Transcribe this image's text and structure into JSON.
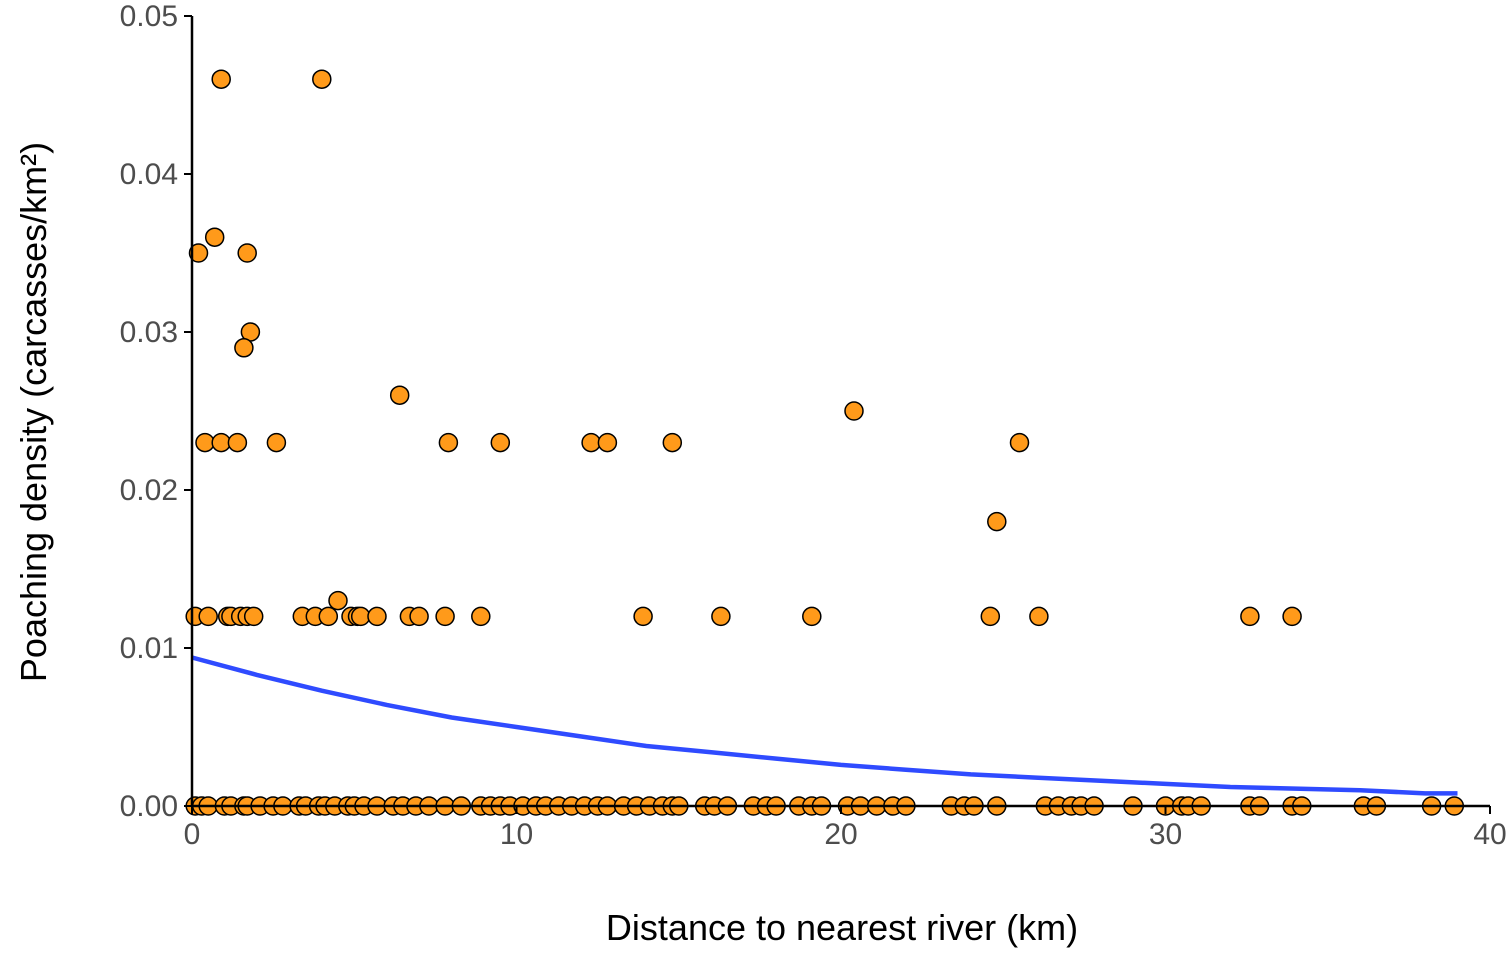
{
  "chart_data": {
    "type": "scatter",
    "xlabel": "Distance to nearest river (km)",
    "ylabel": "Poaching density (carcasses/km²)",
    "xlim": [
      0,
      40
    ],
    "ylim": [
      0,
      0.05
    ],
    "x_ticks": [
      0,
      10,
      20,
      30,
      40
    ],
    "x_tick_labels": [
      "0",
      "10",
      "20",
      "30",
      "40"
    ],
    "y_ticks": [
      0,
      0.01,
      0.02,
      0.03,
      0.04,
      0.05
    ],
    "y_tick_labels": [
      "0.00",
      "0.01",
      "0.02",
      "0.03",
      "0.04",
      "0.05"
    ],
    "grid": false,
    "legend": "none",
    "colors": {
      "point_fill": "#ff9a1a",
      "point_stroke": "#000000",
      "fit_line": "#2f4bff",
      "axis": "#000000"
    },
    "points": [
      {
        "x": 0.9,
        "y": 0.046
      },
      {
        "x": 4.0,
        "y": 0.046
      },
      {
        "x": 0.7,
        "y": 0.036
      },
      {
        "x": 0.2,
        "y": 0.035
      },
      {
        "x": 1.7,
        "y": 0.035
      },
      {
        "x": 1.8,
        "y": 0.03
      },
      {
        "x": 1.6,
        "y": 0.029
      },
      {
        "x": 6.4,
        "y": 0.026
      },
      {
        "x": 20.4,
        "y": 0.025
      },
      {
        "x": 0.4,
        "y": 0.023
      },
      {
        "x": 0.9,
        "y": 0.023
      },
      {
        "x": 1.4,
        "y": 0.023
      },
      {
        "x": 2.6,
        "y": 0.023
      },
      {
        "x": 7.9,
        "y": 0.023
      },
      {
        "x": 9.5,
        "y": 0.023
      },
      {
        "x": 12.3,
        "y": 0.023
      },
      {
        "x": 12.8,
        "y": 0.023
      },
      {
        "x": 14.8,
        "y": 0.023
      },
      {
        "x": 25.5,
        "y": 0.023
      },
      {
        "x": 24.8,
        "y": 0.018
      },
      {
        "x": 4.5,
        "y": 0.013
      },
      {
        "x": 0.1,
        "y": 0.012
      },
      {
        "x": 0.5,
        "y": 0.012
      },
      {
        "x": 1.1,
        "y": 0.012
      },
      {
        "x": 1.2,
        "y": 0.012
      },
      {
        "x": 1.5,
        "y": 0.012
      },
      {
        "x": 1.7,
        "y": 0.012
      },
      {
        "x": 1.9,
        "y": 0.012
      },
      {
        "x": 3.4,
        "y": 0.012
      },
      {
        "x": 3.8,
        "y": 0.012
      },
      {
        "x": 4.2,
        "y": 0.012
      },
      {
        "x": 4.9,
        "y": 0.012
      },
      {
        "x": 5.1,
        "y": 0.012
      },
      {
        "x": 5.2,
        "y": 0.012
      },
      {
        "x": 5.7,
        "y": 0.012
      },
      {
        "x": 6.7,
        "y": 0.012
      },
      {
        "x": 7.0,
        "y": 0.012
      },
      {
        "x": 7.8,
        "y": 0.012
      },
      {
        "x": 8.9,
        "y": 0.012
      },
      {
        "x": 13.9,
        "y": 0.012
      },
      {
        "x": 16.3,
        "y": 0.012
      },
      {
        "x": 19.1,
        "y": 0.012
      },
      {
        "x": 24.6,
        "y": 0.012
      },
      {
        "x": 26.1,
        "y": 0.012
      },
      {
        "x": 32.6,
        "y": 0.012
      },
      {
        "x": 33.9,
        "y": 0.012
      },
      {
        "x": 0.1,
        "y": 0
      },
      {
        "x": 0.3,
        "y": 0
      },
      {
        "x": 0.5,
        "y": 0
      },
      {
        "x": 1.0,
        "y": 0
      },
      {
        "x": 1.2,
        "y": 0
      },
      {
        "x": 1.6,
        "y": 0
      },
      {
        "x": 1.7,
        "y": 0
      },
      {
        "x": 2.1,
        "y": 0
      },
      {
        "x": 2.5,
        "y": 0
      },
      {
        "x": 2.8,
        "y": 0
      },
      {
        "x": 3.3,
        "y": 0
      },
      {
        "x": 3.5,
        "y": 0
      },
      {
        "x": 3.9,
        "y": 0
      },
      {
        "x": 4.1,
        "y": 0
      },
      {
        "x": 4.4,
        "y": 0
      },
      {
        "x": 4.8,
        "y": 0
      },
      {
        "x": 5.0,
        "y": 0
      },
      {
        "x": 5.3,
        "y": 0
      },
      {
        "x": 5.7,
        "y": 0
      },
      {
        "x": 6.2,
        "y": 0
      },
      {
        "x": 6.5,
        "y": 0
      },
      {
        "x": 6.9,
        "y": 0
      },
      {
        "x": 7.3,
        "y": 0
      },
      {
        "x": 7.8,
        "y": 0
      },
      {
        "x": 8.3,
        "y": 0
      },
      {
        "x": 8.9,
        "y": 0
      },
      {
        "x": 9.2,
        "y": 0
      },
      {
        "x": 9.5,
        "y": 0
      },
      {
        "x": 9.8,
        "y": 0
      },
      {
        "x": 10.2,
        "y": 0
      },
      {
        "x": 10.6,
        "y": 0
      },
      {
        "x": 10.9,
        "y": 0
      },
      {
        "x": 11.3,
        "y": 0
      },
      {
        "x": 11.7,
        "y": 0
      },
      {
        "x": 12.1,
        "y": 0
      },
      {
        "x": 12.5,
        "y": 0
      },
      {
        "x": 12.8,
        "y": 0
      },
      {
        "x": 13.3,
        "y": 0
      },
      {
        "x": 13.7,
        "y": 0
      },
      {
        "x": 14.1,
        "y": 0
      },
      {
        "x": 14.5,
        "y": 0
      },
      {
        "x": 14.8,
        "y": 0
      },
      {
        "x": 15.0,
        "y": 0
      },
      {
        "x": 15.8,
        "y": 0
      },
      {
        "x": 16.1,
        "y": 0
      },
      {
        "x": 16.5,
        "y": 0
      },
      {
        "x": 17.3,
        "y": 0
      },
      {
        "x": 17.7,
        "y": 0
      },
      {
        "x": 18.0,
        "y": 0
      },
      {
        "x": 18.7,
        "y": 0
      },
      {
        "x": 19.1,
        "y": 0
      },
      {
        "x": 19.4,
        "y": 0
      },
      {
        "x": 20.2,
        "y": 0
      },
      {
        "x": 20.6,
        "y": 0
      },
      {
        "x": 21.1,
        "y": 0
      },
      {
        "x": 21.6,
        "y": 0
      },
      {
        "x": 22.0,
        "y": 0
      },
      {
        "x": 23.4,
        "y": 0
      },
      {
        "x": 23.8,
        "y": 0
      },
      {
        "x": 24.1,
        "y": 0
      },
      {
        "x": 24.8,
        "y": 0
      },
      {
        "x": 26.3,
        "y": 0
      },
      {
        "x": 26.7,
        "y": 0
      },
      {
        "x": 27.1,
        "y": 0
      },
      {
        "x": 27.4,
        "y": 0
      },
      {
        "x": 27.8,
        "y": 0
      },
      {
        "x": 29.0,
        "y": 0
      },
      {
        "x": 30.0,
        "y": 0
      },
      {
        "x": 30.5,
        "y": 0
      },
      {
        "x": 30.7,
        "y": 0
      },
      {
        "x": 31.1,
        "y": 0
      },
      {
        "x": 32.6,
        "y": 0
      },
      {
        "x": 32.9,
        "y": 0
      },
      {
        "x": 33.9,
        "y": 0
      },
      {
        "x": 34.2,
        "y": 0
      },
      {
        "x": 36.1,
        "y": 0
      },
      {
        "x": 36.5,
        "y": 0
      },
      {
        "x": 38.2,
        "y": 0
      },
      {
        "x": 38.9,
        "y": 0
      }
    ],
    "fit_line": {
      "x": [
        0,
        2,
        4,
        6,
        8,
        10,
        12,
        14,
        16,
        18,
        20,
        22,
        24,
        26,
        28,
        30,
        32,
        34,
        36,
        38,
        39
      ],
      "y": [
        0.0094,
        0.0083,
        0.0073,
        0.0064,
        0.0056,
        0.005,
        0.0044,
        0.0038,
        0.0034,
        0.003,
        0.0026,
        0.0023,
        0.002,
        0.0018,
        0.0016,
        0.0014,
        0.0012,
        0.0011,
        0.001,
        0.0008,
        0.0008
      ]
    }
  }
}
